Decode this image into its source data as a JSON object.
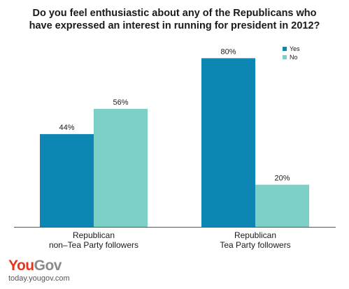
{
  "chart_data": {
    "type": "bar",
    "title_lines": [
      "Do you feel enthusiastic about any of the Republicans who",
      "have expressed an interest in running for president in 2012?"
    ],
    "categories": [
      [
        "Republican",
        "non–Tea Party followers"
      ],
      [
        "Republican",
        "Tea Party followers"
      ]
    ],
    "series": [
      {
        "name": "Yes",
        "values": [
          44,
          80
        ],
        "color": "#0e86b4"
      },
      {
        "name": "No",
        "values": [
          56,
          20
        ],
        "color": "#7dd0c6"
      }
    ],
    "value_suffix": "%",
    "ylim": [
      0,
      100
    ],
    "grid": false,
    "legend_position": "top-right"
  },
  "brand": {
    "logo_you": "You",
    "logo_gov": "Gov",
    "url": "today.yougov.com"
  }
}
